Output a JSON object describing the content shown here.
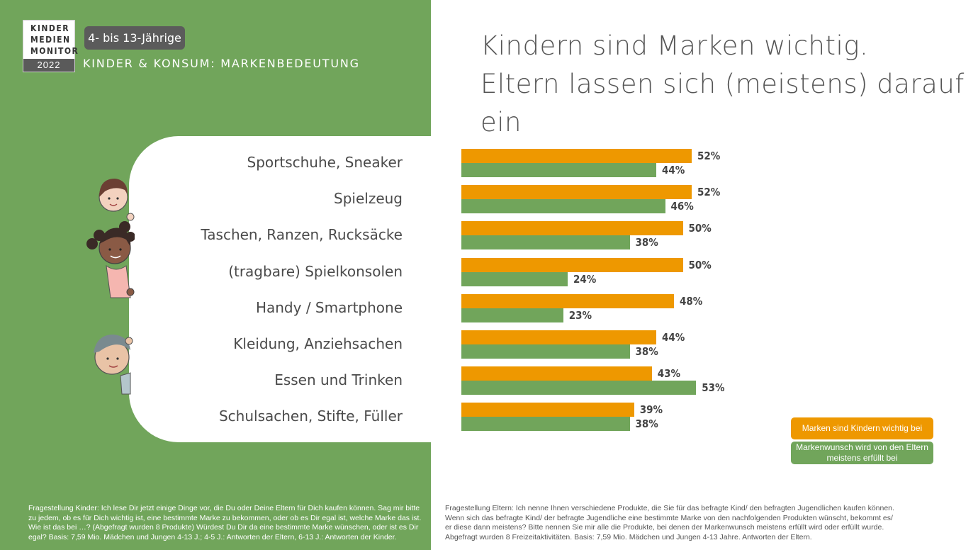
{
  "logo": {
    "line1": "KINDER",
    "line2": "MEDIEN",
    "line3": "MONITOR",
    "year": "2022"
  },
  "header": {
    "age_badge": "4- bis 13-Jährige",
    "subtitle": "Kinder & Konsum: Markenbedeutung",
    "title_line1": "Kindern sind Marken wichtig.",
    "title_line2": "Eltern lassen sich (meistens) darauf ein"
  },
  "colors": {
    "orange": "#ee9800",
    "green": "#71a55b"
  },
  "chart_data": {
    "type": "bar",
    "orientation": "horizontal",
    "categories": [
      "Sportschuhe, Sneaker",
      "Spielzeug",
      "Taschen, Ranzen, Rucksäcke",
      "(tragbare) Spielkonsolen",
      "Handy / Smartphone",
      "Kleidung, Anziehsachen",
      "Essen und Trinken",
      "Schulsachen, Stifte, Füller"
    ],
    "series": [
      {
        "name": "Marken sind Kindern wichtig bei",
        "color": "#ee9800",
        "values": [
          52,
          52,
          50,
          50,
          48,
          44,
          43,
          39
        ]
      },
      {
        "name": "Markenwunsch wird von den Eltern meistens erfüllt bei",
        "color": "#71a55b",
        "values": [
          44,
          46,
          38,
          24,
          23,
          38,
          53,
          38
        ]
      }
    ],
    "value_suffix": "%",
    "legend_position": "bottom-right",
    "grid": false
  },
  "legend": {
    "orange_label": "Marken sind Kindern wichtig bei",
    "green_label": "Markenwunsch wird von den Eltern meistens erfüllt bei"
  },
  "footnotes": {
    "left": "Fragestellung Kinder: Ich lese Dir jetzt einige Dinge vor, die Du oder Deine Eltern für Dich kaufen können. Sag mir bitte zu jedem, ob es für Dich wichtig ist, eine bestimmte Marke zu bekommen, oder ob es Dir egal ist, welche Marke das ist. Wie ist das bei …? (Abgefragt wurden 8 Produkte) Würdest Du Dir da eine bestimmte Marke wünschen, oder ist es Dir egal? Basis: 7,59 Mio. Mädchen und Jungen 4-13 J.; 4-5 J.: Antworten der Eltern, 6-13 J.: Antworten der Kinder.",
    "right": "Fragestellung Eltern: Ich nenne Ihnen verschiedene Produkte, die Sie für das befragte Kind/ den befragten Jugendlichen kaufen können. Wenn sich das befragte Kind/ der befragte Jugendliche eine bestimmte Marke von den nachfolgenden Produkten wünscht, bekommt es/ er diese dann meistens? Bitte nennen Sie mir alle die Produkte, bei denen der Markenwunsch meistens erfüllt wird oder erfüllt wurde. Abgefragt wurden 8 Freizeitaktivitäten. Basis: 7,59 Mio. Mädchen und Jungen 4-13 Jahre. Antworten der Eltern."
  }
}
